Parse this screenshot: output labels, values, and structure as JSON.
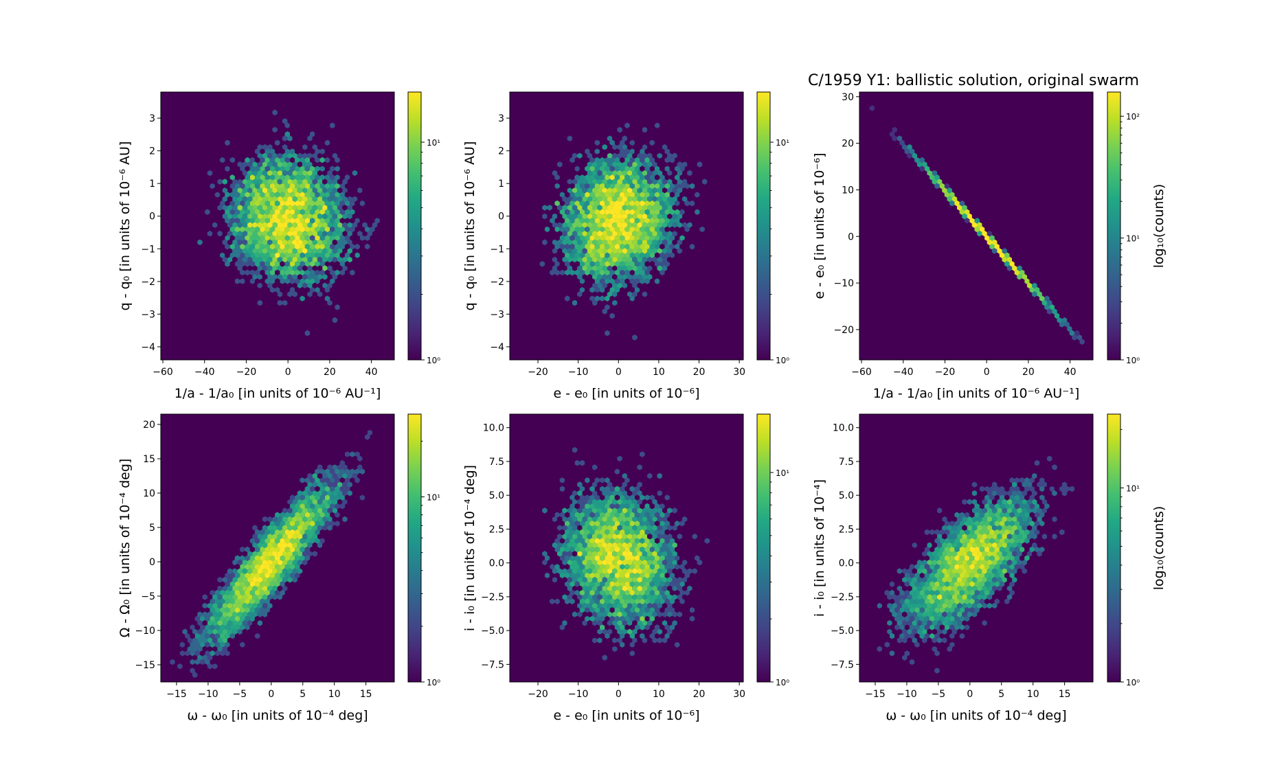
{
  "title": "C/1959 Y1:  ballistic solution, original swarm",
  "chart_data": [
    {
      "type": "hexbin",
      "xlabel": "1/a - 1/a₀ [in units of 10⁻⁶ AU⁻¹]",
      "ylabel": "q - q₀ [in units of 10⁻⁶ AU]",
      "xlim": [
        -61,
        51
      ],
      "ylim": [
        -4.4,
        3.8
      ],
      "xticks": [
        -60,
        -40,
        -20,
        0,
        20,
        40
      ],
      "xtick_labels": [
        "−60",
        "−40",
        "−20",
        "0",
        "20",
        "40"
      ],
      "yticks": [
        -4,
        -3,
        -2,
        -1,
        0,
        1,
        2,
        3
      ],
      "ytick_labels": [
        "−4",
        "−3",
        "−2",
        "−1",
        "0",
        "1",
        "2",
        "3"
      ],
      "colorbar": {
        "scale": "log",
        "range": [
          1,
          17
        ],
        "ticks": [
          1,
          10
        ],
        "tick_labels": [
          "10⁰",
          "10¹"
        ],
        "label": ""
      },
      "samples": {
        "n": 5000,
        "mean": [
          0,
          -0.1
        ],
        "std": [
          15,
          1.05
        ],
        "corr": -0.1
      }
    },
    {
      "type": "hexbin",
      "xlabel": "e - e₀ [in units of 10⁻⁶]",
      "ylabel": "q - q₀ [in units of 10⁻⁶ AU]",
      "xlim": [
        -27,
        31
      ],
      "ylim": [
        -4.4,
        3.8
      ],
      "xticks": [
        -20,
        -10,
        0,
        10,
        20,
        30
      ],
      "xtick_labels": [
        "−20",
        "−10",
        "0",
        "10",
        "20",
        "30"
      ],
      "yticks": [
        -4,
        -3,
        -2,
        -1,
        0,
        1,
        2,
        3
      ],
      "ytick_labels": [
        "−4",
        "−3",
        "−2",
        "−1",
        "0",
        "1",
        "2",
        "3"
      ],
      "colorbar": {
        "scale": "log",
        "range": [
          1,
          17
        ],
        "ticks": [
          1,
          10
        ],
        "tick_labels": [
          "10⁰",
          "10¹"
        ],
        "label": ""
      },
      "samples": {
        "n": 5000,
        "mean": [
          0,
          -0.1
        ],
        "std": [
          7.5,
          1.05
        ],
        "corr": 0.1
      }
    },
    {
      "type": "hexbin",
      "xlabel": "1/a - 1/a₀ [in units of 10⁻⁶ AU⁻¹]",
      "ylabel": "e - e₀ [in units of 10⁻⁶]",
      "xlim": [
        -61,
        51
      ],
      "ylim": [
        -26.5,
        31
      ],
      "xticks": [
        -60,
        -40,
        -20,
        0,
        20,
        40
      ],
      "xtick_labels": [
        "−60",
        "−40",
        "−20",
        "0",
        "20",
        "40"
      ],
      "yticks": [
        -20,
        -10,
        0,
        10,
        20,
        30
      ],
      "ytick_labels": [
        "−20",
        "−10",
        "0",
        "10",
        "20",
        "30"
      ],
      "colorbar": {
        "scale": "log",
        "range": [
          1,
          158
        ],
        "ticks": [
          1,
          10,
          100
        ],
        "tick_labels": [
          "10⁰",
          "10¹",
          "10²"
        ],
        "label": "log₁₀(counts)"
      },
      "samples": {
        "n": 5000,
        "mean": [
          0,
          0
        ],
        "std": [
          15,
          0.25
        ],
        "linear_relation": {
          "slope": -0.5,
          "intercept": 0
        }
      }
    },
    {
      "type": "hexbin",
      "xlabel": "ω - ω₀ [in units of 10⁻⁴ deg]",
      "ylabel": "Ω - Ω₀ [in units of 10⁻⁴ deg]",
      "xlim": [
        -17.5,
        19.5
      ],
      "ylim": [
        -17.5,
        21.5
      ],
      "xticks": [
        -15,
        -10,
        -5,
        0,
        5,
        10,
        15
      ],
      "xtick_labels": [
        "−15",
        "−10",
        "−5",
        "0",
        "5",
        "10",
        "15"
      ],
      "yticks": [
        -15,
        -10,
        -5,
        0,
        5,
        10,
        15,
        20
      ],
      "ytick_labels": [
        "−15",
        "−10",
        "−5",
        "0",
        "5",
        "10",
        "15",
        "20"
      ],
      "colorbar": {
        "scale": "log",
        "range": [
          1,
          28
        ],
        "ticks": [
          1,
          10
        ],
        "tick_labels": [
          "10⁰",
          "10¹"
        ],
        "label": ""
      },
      "samples": {
        "n": 5000,
        "mean": [
          0,
          0
        ],
        "std": [
          5.5,
          6.2
        ],
        "corr": 0.9
      }
    },
    {
      "type": "hexbin",
      "xlabel": "e - e₀ [in units of 10⁻⁶]",
      "ylabel": "i - i₀ [in units of 10⁻⁴ deg]",
      "xlim": [
        -27,
        31
      ],
      "ylim": [
        -8.8,
        11
      ],
      "xticks": [
        -20,
        -10,
        0,
        10,
        20,
        30
      ],
      "xtick_labels": [
        "−20",
        "−10",
        "0",
        "10",
        "20",
        "30"
      ],
      "yticks": [
        -7.5,
        -5,
        -2.5,
        0,
        2.5,
        5,
        7.5,
        10
      ],
      "ytick_labels": [
        "−7.5",
        "−5.0",
        "−2.5",
        "0.0",
        "2.5",
        "5.0",
        "7.5",
        "10.0"
      ],
      "colorbar": {
        "scale": "log",
        "range": [
          1,
          19
        ],
        "ticks": [
          1,
          10
        ],
        "tick_labels": [
          "10⁰",
          "10¹"
        ],
        "label": ""
      },
      "samples": {
        "n": 5000,
        "mean": [
          0,
          0.2
        ],
        "std": [
          7.5,
          2.7
        ],
        "corr": -0.15
      }
    },
    {
      "type": "hexbin",
      "xlabel": "ω - ω₀ [in units of 10⁻⁴ deg]",
      "ylabel": "i - i₀ [in units of 10⁻⁴]",
      "xlim": [
        -17.5,
        19.5
      ],
      "ylim": [
        -8.8,
        11
      ],
      "xticks": [
        -15,
        -10,
        -5,
        0,
        5,
        10,
        15
      ],
      "xtick_labels": [
        "−15",
        "−10",
        "−5",
        "0",
        "5",
        "10",
        "15"
      ],
      "yticks": [
        -7.5,
        -5,
        -2.5,
        0,
        2.5,
        5,
        7.5,
        10
      ],
      "ytick_labels": [
        "−7.5",
        "−5.0",
        "−2.5",
        "0.0",
        "2.5",
        "5.0",
        "7.5",
        "10.0"
      ],
      "colorbar": {
        "scale": "log",
        "range": [
          1,
          24
        ],
        "ticks": [
          1,
          10
        ],
        "tick_labels": [
          "10⁰",
          "10¹"
        ],
        "label": "log₁₀(counts)"
      },
      "samples": {
        "n": 5000,
        "mean": [
          0,
          0
        ],
        "std": [
          5.5,
          2.7
        ],
        "corr": 0.68
      }
    }
  ]
}
